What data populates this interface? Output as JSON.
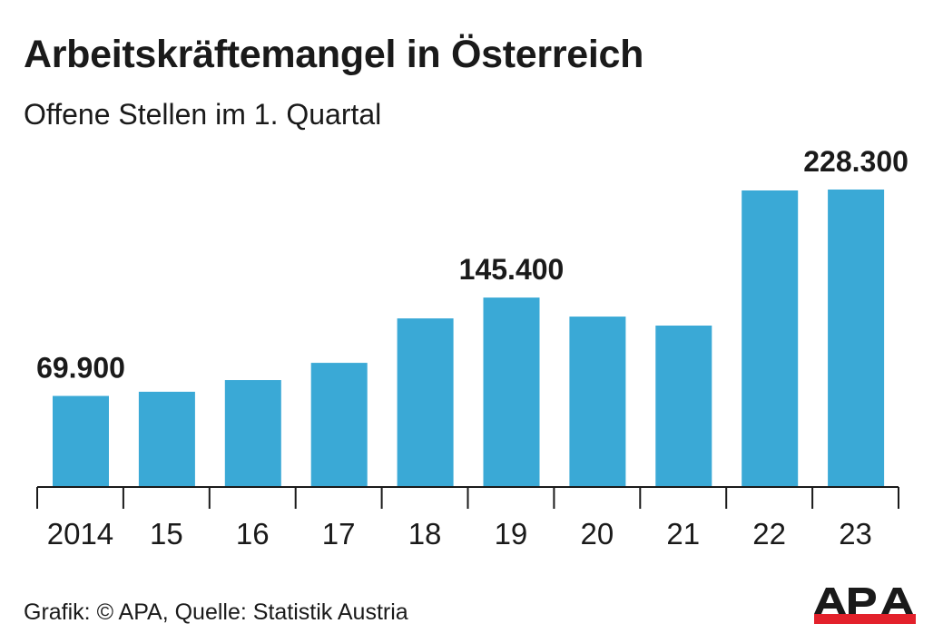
{
  "chart_data": {
    "type": "bar",
    "title": "Arbeitskräftemangel in Österreich",
    "subtitle": "Offene Stellen im 1. Quartal",
    "xlabel": "",
    "ylabel": "",
    "categories": [
      "2014",
      "15",
      "16",
      "17",
      "18",
      "19",
      "20",
      "21",
      "22",
      "23"
    ],
    "values": [
      69900,
      73100,
      82100,
      95300,
      129400,
      145400,
      130800,
      123900,
      227600,
      228300
    ],
    "data_labels": [
      {
        "index": 0,
        "text": "69.900"
      },
      {
        "index": 5,
        "text": "145.400"
      },
      {
        "index": 9,
        "text": "228.300"
      }
    ],
    "ylim": [
      0,
      228300
    ],
    "grid": false,
    "legend": "none",
    "bar_color": "#3aa9d6"
  },
  "source": "Grafik: © APA, Quelle: Statistik Austria",
  "logo": {
    "text": "APA",
    "colors": {
      "text": "#1a1a1a",
      "bar": "#e3212b"
    }
  }
}
